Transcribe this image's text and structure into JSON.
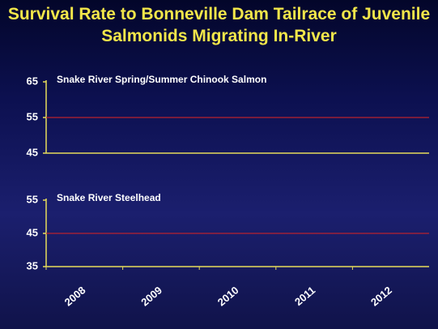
{
  "title": "Survival Rate to Bonneville Dam Tailrace of Juvenile Salmonids Migrating In-River",
  "chart_data": [
    {
      "type": "line",
      "title": "Snake River Spring/Summer Chinook Salmon",
      "ylim": [
        45,
        65
      ],
      "yticks": [
        45,
        55,
        65
      ],
      "reference_line": 55,
      "color": "#b8222e"
    },
    {
      "type": "line",
      "title": "Snake River Steelhead",
      "categories": [
        "2008",
        "2009",
        "2010",
        "2011",
        "2012"
      ],
      "ylim": [
        35,
        55
      ],
      "yticks": [
        35,
        45,
        55
      ],
      "reference_line": 45,
      "color": "#b8222e"
    }
  ]
}
